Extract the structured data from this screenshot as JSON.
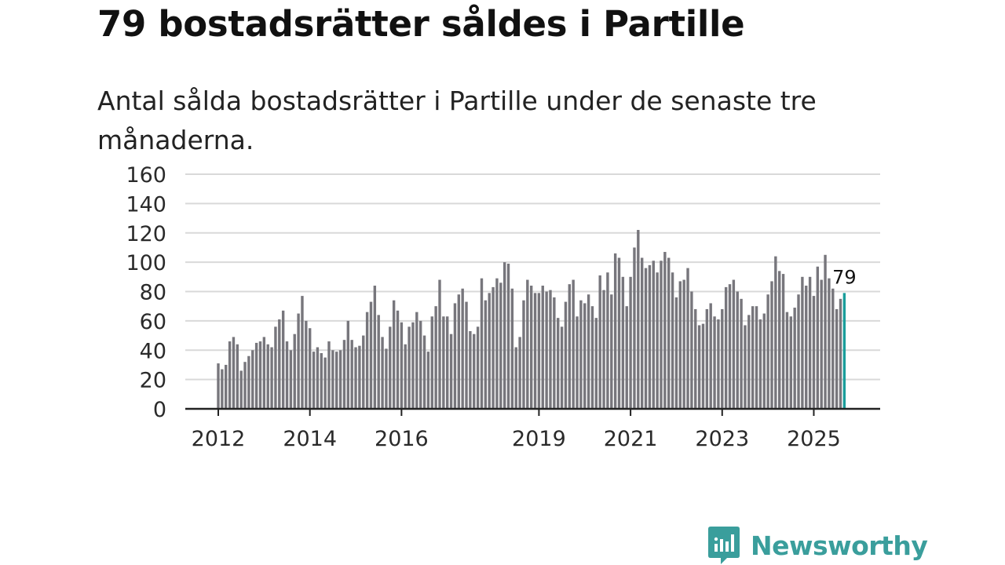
{
  "header": {
    "title": "79 bostadsrätter såldes i Partille",
    "subtitle": "Antal sålda bostadsrätter i Partille under de senaste tre månaderna."
  },
  "brand": {
    "name": "Newsworthy",
    "color": "#3a9e9c"
  },
  "colors": {
    "bar": "#77767c",
    "highlight": "#1a9e9b",
    "grid": "#d9d9d9",
    "axis": "#222222"
  },
  "chart_data": {
    "type": "bar",
    "title": "79 bostadsrätter såldes i Partille",
    "xlabel": "",
    "ylabel": "",
    "ylim": [
      0,
      160
    ],
    "yticks": [
      0,
      20,
      40,
      60,
      80,
      100,
      120,
      140,
      160
    ],
    "x_tick_labels": [
      "2012",
      "2014",
      "2016",
      "2019",
      "2021",
      "2023",
      "2025"
    ],
    "start_month": "2012-01",
    "series": [
      {
        "name": "Antal sålda bostadsrätter",
        "values": [
          31,
          27,
          30,
          46,
          49,
          44,
          26,
          32,
          36,
          40,
          45,
          46,
          49,
          44,
          42,
          56,
          61,
          67,
          46,
          40,
          51,
          65,
          77,
          60,
          55,
          39,
          42,
          38,
          35,
          46,
          40,
          39,
          40,
          47,
          60,
          47,
          42,
          43,
          50,
          66,
          73,
          84,
          64,
          49,
          41,
          56,
          74,
          67,
          59,
          44,
          56,
          59,
          66,
          60,
          50,
          39,
          63,
          70,
          88,
          63,
          63,
          51,
          72,
          78,
          82,
          73,
          53,
          51,
          56,
          89,
          74,
          79,
          83,
          89,
          86,
          100,
          99,
          82,
          42,
          49,
          74,
          88,
          84,
          79,
          79,
          84,
          80,
          81,
          76,
          62,
          56,
          73,
          85,
          88,
          63,
          74,
          72,
          78,
          70,
          62,
          91,
          81,
          93,
          78,
          106,
          103,
          90,
          70,
          90,
          110,
          122,
          103,
          96,
          98,
          101,
          93,
          101,
          107,
          103,
          93,
          76,
          87,
          88,
          96,
          80,
          68,
          57,
          58,
          68,
          72,
          63,
          61,
          68,
          83,
          85,
          88,
          80,
          75,
          57,
          64,
          70,
          70,
          61,
          65,
          78,
          87,
          104,
          94,
          92,
          66,
          63,
          69,
          78,
          90,
          84,
          90,
          77,
          97,
          88,
          105,
          89,
          82,
          68,
          75,
          79
        ]
      }
    ],
    "highlight_last": true,
    "annotations": [
      {
        "label": "79",
        "target": "last bar"
      }
    ]
  }
}
